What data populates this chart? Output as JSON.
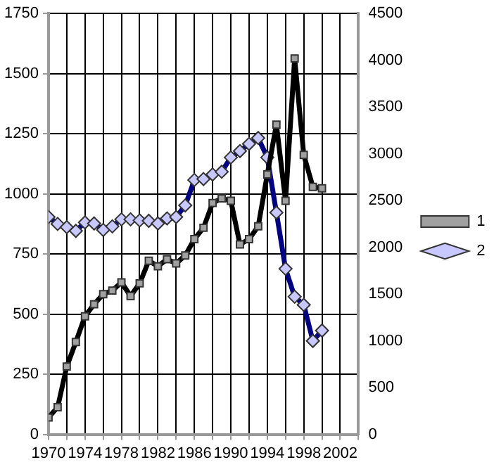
{
  "chart_data": {
    "type": "line",
    "x": [
      1970,
      1971,
      1972,
      1973,
      1974,
      1975,
      1976,
      1977,
      1978,
      1979,
      1980,
      1981,
      1982,
      1983,
      1984,
      1985,
      1986,
      1987,
      1988,
      1989,
      1990,
      1991,
      1992,
      1993,
      1994,
      1995,
      1996,
      1997,
      1998,
      1999,
      2000
    ],
    "series": [
      {
        "name": "1",
        "color": "#000000",
        "marker": "square",
        "values": [
          70,
          113,
          282,
          384,
          491,
          541,
          583,
          598,
          632,
          575,
          628,
          722,
          699,
          728,
          711,
          744,
          812,
          859,
          962,
          981,
          971,
          790,
          812,
          865,
          1081,
          1288,
          971,
          1563,
          1162,
          1029,
          1023
        ]
      },
      {
        "name": "2",
        "color": "#000080",
        "marker": "diamond",
        "axis": "y2",
        "values": [
          2324,
          2250,
          2216,
          2176,
          2266,
          2255,
          2186,
          2224,
          2299,
          2299,
          2288,
          2283,
          2255,
          2309,
          2324,
          2448,
          2720,
          2730,
          2779,
          2808,
          2961,
          3029,
          3106,
          3169,
          2961,
          2372,
          1771,
          1472,
          1385,
          999,
          1110
        ]
      }
    ],
    "xlim": [
      1970,
      2004
    ],
    "xticks": [
      1970,
      {
        "value": 1972,
        "label": null
      },
      1974,
      {
        "value": 1976,
        "label": null
      },
      1978,
      {
        "value": 1980,
        "label": null
      },
      1982,
      {
        "value": 1984,
        "label": null
      },
      1986,
      {
        "value": 1988,
        "label": null
      },
      1990,
      {
        "value": 1992,
        "label": null
      },
      1994,
      {
        "value": 1996,
        "label": null
      },
      1998,
      {
        "value": 2000,
        "label": null
      },
      2002,
      {
        "value": 2004,
        "label": null
      }
    ],
    "ylim": [
      0,
      1750
    ],
    "yticks": [
      0,
      250,
      500,
      750,
      1000,
      1250,
      1500,
      1750
    ],
    "y2lim": [
      0,
      4500
    ],
    "y2ticks": [
      0,
      500,
      1000,
      1500,
      2000,
      2500,
      3000,
      3500,
      4000,
      4500
    ],
    "grid": true,
    "legend": "right"
  }
}
